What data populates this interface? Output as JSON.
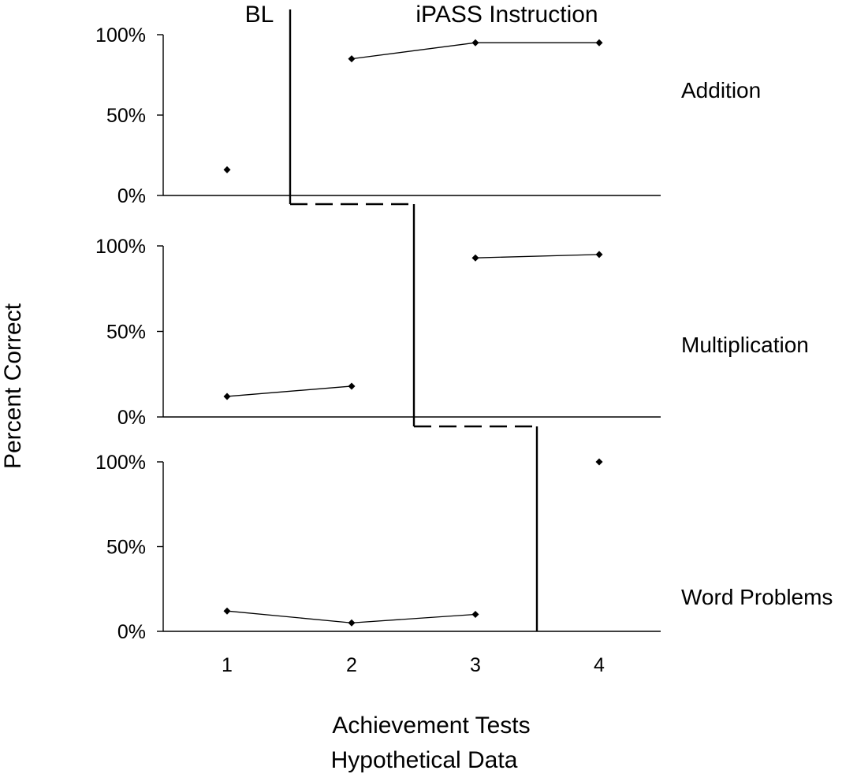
{
  "chart_data": {
    "type": "line",
    "ylabel": "Percent Correct",
    "xlabel_lines": [
      "Achievement Tests",
      "Hypothetical Data"
    ],
    "phase_labels": {
      "baseline": "BL",
      "intervention": "iPASS Instruction"
    },
    "x_ticks": [
      "1",
      "2",
      "3",
      "4"
    ],
    "y_ticks": [
      "0%",
      "50%",
      "100%"
    ],
    "ylim": [
      0,
      100
    ],
    "grid": false,
    "legend": "none",
    "panels": [
      {
        "label": "Addition",
        "phase_change_after": 1,
        "baseline_points": [
          {
            "x": 1,
            "y": 16
          }
        ],
        "intervention_points": [
          {
            "x": 2,
            "y": 85
          },
          {
            "x": 3,
            "y": 95
          },
          {
            "x": 4,
            "y": 95
          }
        ]
      },
      {
        "label": "Multiplication",
        "phase_change_after": 2,
        "baseline_points": [
          {
            "x": 1,
            "y": 12
          },
          {
            "x": 2,
            "y": 18
          }
        ],
        "intervention_points": [
          {
            "x": 3,
            "y": 93
          },
          {
            "x": 4,
            "y": 95
          }
        ]
      },
      {
        "label": "Word Problems",
        "phase_change_after": 3,
        "baseline_points": [
          {
            "x": 1,
            "y": 12
          },
          {
            "x": 2,
            "y": 5
          },
          {
            "x": 3,
            "y": 10
          }
        ],
        "intervention_points": [
          {
            "x": 4,
            "y": 100
          }
        ]
      }
    ]
  }
}
